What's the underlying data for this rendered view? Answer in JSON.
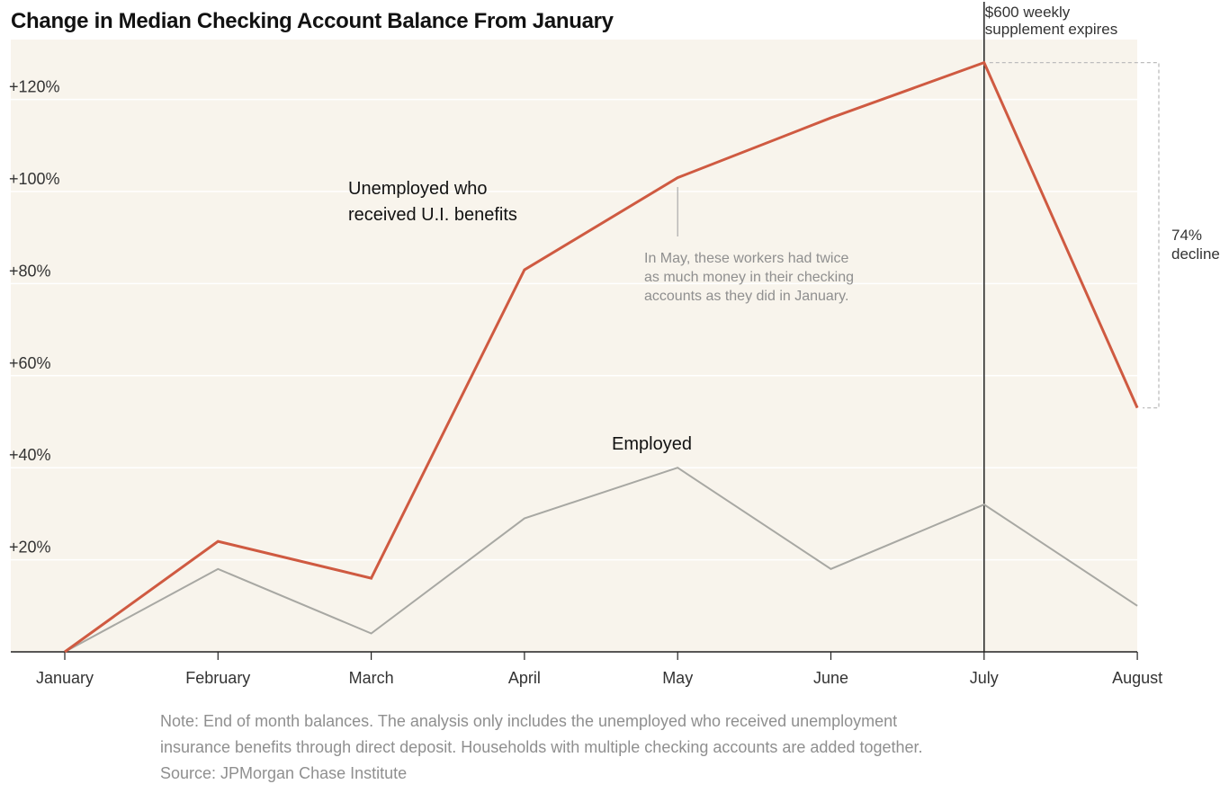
{
  "chart_data": {
    "type": "line",
    "title": "Change in Median Checking Account Balance From January",
    "xlabel": "",
    "ylabel": "",
    "categories": [
      "January",
      "February",
      "March",
      "April",
      "May",
      "June",
      "July",
      "August"
    ],
    "ylim": [
      0,
      130
    ],
    "yticks": [
      20,
      40,
      60,
      80,
      100,
      120
    ],
    "ytick_labels": [
      "+20%",
      "+40%",
      "+60%",
      "+80%",
      "+100%",
      "+120%"
    ],
    "grid": true,
    "series": [
      {
        "name": "Unemployed who received U.I. benefits",
        "label_lines": [
          "Unemployed who",
          "received U.I. benefits"
        ],
        "values": [
          0,
          24,
          16,
          83,
          103,
          116,
          128,
          53
        ],
        "color": "#cf5a41"
      },
      {
        "name": "Employed",
        "label_lines": [
          "Employed"
        ],
        "values": [
          0,
          18,
          4,
          29,
          40,
          18,
          32,
          10
        ],
        "color": "#a8a8a3"
      }
    ],
    "annotations": [
      {
        "id": "may",
        "category": "May",
        "lines": [
          "In May, these workers had twice",
          "as much money in their checking",
          "accounts as they did in January."
        ]
      },
      {
        "id": "july",
        "category": "July",
        "lines": [
          "$600 weekly",
          "supplement expires"
        ]
      },
      {
        "id": "decline",
        "from_category": "July",
        "to_category": "August",
        "lines": [
          "74%",
          "decline"
        ]
      }
    ]
  },
  "notes": {
    "line1": "Note: End of month balances. The analysis only includes the unemployed who received unemployment",
    "line2": "insurance benefits through direct deposit. Households with multiple checking accounts are added together.",
    "source": "Source: JPMorgan Chase Institute"
  },
  "colors": {
    "plot_background": "#f8f4ec",
    "unemployed": "#cf5a41",
    "employed": "#a8a8a3"
  }
}
